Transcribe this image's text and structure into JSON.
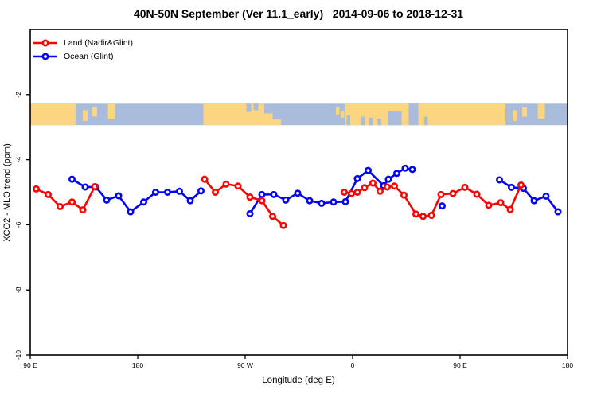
{
  "chart_data": {
    "type": "line",
    "title": "40N-50N September (Ver 11.1_early)   2014-09-06 to 2018-12-31",
    "xlabel": "Longitude (deg E)",
    "ylabel": "XCO2 - MLO trend (ppm)",
    "x_range": [
      0,
      450
    ],
    "y_range": [
      -10,
      0
    ],
    "x_ticks": [
      {
        "pos": 0,
        "label": "90 E"
      },
      {
        "pos": 90,
        "label": "180"
      },
      {
        "pos": 180,
        "label": "90 W"
      },
      {
        "pos": 270,
        "label": "0"
      },
      {
        "pos": 360,
        "label": "90 E"
      },
      {
        "pos": 450,
        "label": "180"
      }
    ],
    "y_ticks": [
      {
        "value": -2,
        "label": "-2"
      },
      {
        "value": -4,
        "label": "-4"
      },
      {
        "value": -6,
        "label": "-6"
      },
      {
        "value": -8,
        "label": "-8"
      },
      {
        "value": -10,
        "label": "-10"
      }
    ],
    "grid": false,
    "legend_position": "top-left",
    "axis_note": "x axis wraps: longitudes 90E-180 are shown at both ends",
    "series": [
      {
        "id": "land",
        "name": "Land (Nadir&Glint)",
        "color": "#ff0000",
        "segments": [
          [
            [
              5,
              -4.9
            ],
            [
              15,
              -5.07
            ],
            [
              25,
              -5.44
            ],
            [
              35,
              -5.3
            ],
            [
              44,
              -5.54
            ],
            [
              54,
              -4.83
            ]
          ],
          [
            [
              146,
              -4.6
            ],
            [
              155,
              -5.0
            ],
            [
              164,
              -4.75
            ],
            [
              174,
              -4.81
            ],
            [
              184,
              -5.15
            ],
            [
              194,
              -5.26
            ],
            [
              203,
              -5.74
            ],
            [
              212,
              -6.02
            ]
          ],
          [
            [
              263,
              -5.0
            ],
            [
              269,
              -5.04
            ],
            [
              274,
              -5.0
            ],
            [
              280,
              -4.86
            ],
            [
              287,
              -4.72
            ],
            [
              293,
              -4.97
            ],
            [
              299,
              -4.84
            ],
            [
              305,
              -4.81
            ],
            [
              313,
              -5.09
            ],
            [
              323,
              -5.67
            ],
            [
              329,
              -5.74
            ],
            [
              336,
              -5.71
            ],
            [
              344,
              -5.07
            ],
            [
              354,
              -5.04
            ],
            [
              364,
              -4.85
            ],
            [
              374,
              -5.06
            ],
            [
              384,
              -5.4
            ],
            [
              394,
              -5.32
            ],
            [
              402,
              -5.53
            ],
            [
              411,
              -4.78
            ]
          ]
        ],
        "isolated_points": []
      },
      {
        "id": "ocean",
        "name": "Ocean (Glint)",
        "color": "#0000ff",
        "segments": [
          [
            [
              35,
              -4.6
            ],
            [
              46,
              -4.84
            ],
            [
              55,
              -4.84
            ],
            [
              64,
              -5.24
            ],
            [
              74,
              -5.11
            ],
            [
              84,
              -5.6
            ],
            [
              95,
              -5.3
            ],
            [
              105,
              -5.0
            ],
            [
              115,
              -5.0
            ],
            [
              125,
              -4.97
            ],
            [
              134,
              -5.26
            ],
            [
              143,
              -4.96
            ]
          ],
          [
            [
              184,
              -5.66
            ],
            [
              194,
              -5.07
            ],
            [
              204,
              -5.07
            ],
            [
              214,
              -5.24
            ],
            [
              224,
              -5.03
            ],
            [
              234,
              -5.26
            ],
            [
              244,
              -5.34
            ],
            [
              254,
              -5.3
            ],
            [
              264,
              -5.29
            ],
            [
              274,
              -4.58
            ],
            [
              283,
              -4.33
            ],
            [
              296,
              -4.8
            ],
            [
              300,
              -4.6
            ],
            [
              307,
              -4.42
            ],
            [
              314,
              -4.26
            ],
            [
              320,
              -4.3
            ]
          ],
          [
            [
              393,
              -4.62
            ],
            [
              403,
              -4.85
            ],
            [
              413,
              -4.88
            ],
            [
              422,
              -5.26
            ],
            [
              432,
              -5.12
            ],
            [
              442,
              -5.6
            ]
          ]
        ],
        "isolated_points": [
          [
            345,
            -5.42
          ]
        ]
      }
    ],
    "map_strip": {
      "description": "40N-50N latitude band world map",
      "value_top": -2.28,
      "value_bottom": -2.94,
      "ocean_color": "#a9bcdb",
      "land_color": "#fbd57f",
      "land_segments": [
        [
          0,
          38
        ],
        [
          145,
          196
        ],
        [
          264,
          398
        ]
      ],
      "land_patches": [
        {
          "x": [
            44,
            48
          ],
          "y": [
            0.3,
            0.8
          ]
        },
        {
          "x": [
            52,
            56
          ],
          "y": [
            0.15,
            0.6
          ]
        },
        {
          "x": [
            65,
            71
          ],
          "y": [
            0.0,
            0.7
          ]
        },
        {
          "x": [
            196,
            203
          ],
          "y": [
            0.45,
            1.0
          ]
        },
        {
          "x": [
            203,
            210
          ],
          "y": [
            0.72,
            1.0
          ]
        },
        {
          "x": [
            256,
            259
          ],
          "y": [
            0.15,
            0.5
          ]
        },
        {
          "x": [
            260,
            263
          ],
          "y": [
            0.35,
            0.65
          ]
        },
        {
          "x": [
            404,
            408
          ],
          "y": [
            0.3,
            0.8
          ]
        },
        {
          "x": [
            412,
            416
          ],
          "y": [
            0.15,
            0.6
          ]
        },
        {
          "x": [
            425,
            431
          ],
          "y": [
            0.0,
            0.7
          ]
        }
      ],
      "ocean_patches": [
        {
          "x": [
            181,
            185
          ],
          "y": [
            0.0,
            0.38
          ]
        },
        {
          "x": [
            187,
            191
          ],
          "y": [
            0.0,
            0.3
          ]
        },
        {
          "x": [
            265,
            268
          ],
          "y": [
            0.55,
            1.0
          ]
        },
        {
          "x": [
            277,
            280
          ],
          "y": [
            0.6,
            1.0
          ]
        },
        {
          "x": [
            284,
            287
          ],
          "y": [
            0.65,
            1.0
          ]
        },
        {
          "x": [
            291,
            294
          ],
          "y": [
            0.7,
            1.0
          ]
        },
        {
          "x": [
            300,
            311
          ],
          "y": [
            0.35,
            1.0
          ]
        },
        {
          "x": [
            317,
            325
          ],
          "y": [
            0.0,
            1.0
          ]
        },
        {
          "x": [
            330,
            333
          ],
          "y": [
            0.6,
            1.0
          ]
        }
      ]
    }
  }
}
